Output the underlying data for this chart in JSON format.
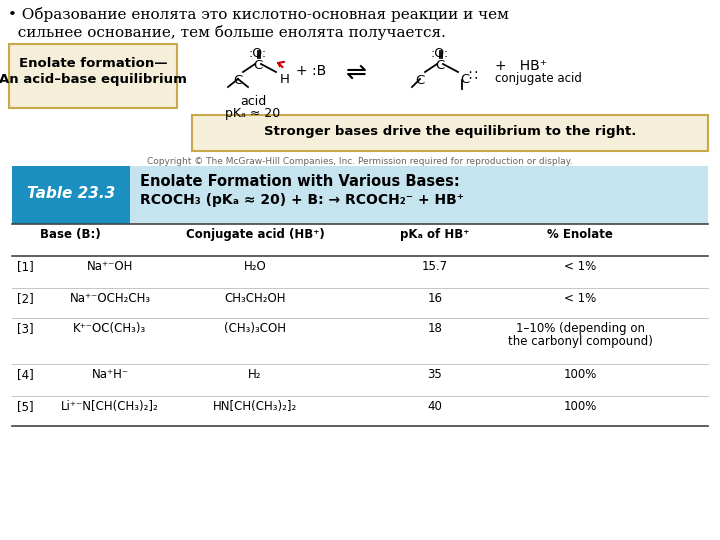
{
  "bullet_text_line1": "• Образование енолята это кислотно-основная реакции и чем",
  "bullet_text_line2": "  сильнее основание, тем больше енолята получается.",
  "box_label_line1": "Enolate formation—",
  "box_label_line2": "An acid–base equilibrium",
  "stronger_bases_text": "Stronger bases drive the equilibrium to the right.",
  "copyright_text": "Copyright © The McGraw-Hill Companies, Inc. Permission required for reproduction or display.",
  "table_number": "Table 23.3",
  "table_title_line1": "Enolate Formation with Various Bases:",
  "table_title_line2": "RCOCH₃ (pKₐ ≈ 20) + B: → RCOCH₂⁻ + HB⁺",
  "col_headers": [
    "Base (B:)",
    "Conjugate acid (HB⁺)",
    "pKₐ of HB⁺",
    "% Enolate"
  ],
  "rows": [
    {
      "num": "[1]",
      "base": "Na⁺⁻OH",
      "conj": "H₂O",
      "pka": "15.7",
      "enolate": "< 1%"
    },
    {
      "num": "[2]",
      "base": "Na⁺⁻OCH₂CH₃",
      "conj": "CH₃CH₂OH",
      "pka": "16",
      "enolate": "< 1%"
    },
    {
      "num": "[3]",
      "base": "K⁺⁻OC(CH₃)₃",
      "conj": "(CH₃)₃COH",
      "pka": "18",
      "enolate": "1–10% (depending on\nthe carbonyl compound)"
    },
    {
      "num": "[4]",
      "base": "Na⁺H⁻",
      "conj": "H₂",
      "pka": "35",
      "enolate": "100%"
    },
    {
      "num": "[5]",
      "base": "Li⁺⁻N[CH(CH₃)₂]₂",
      "conj": "HN[CH(CH₃)₂]₂",
      "pka": "40",
      "enolate": "100%"
    }
  ],
  "bg_color": "#ffffff",
  "table_header_bg": "#1a8fc0",
  "table_title_bg": "#c5e4f0",
  "box_bg": "#f5eed8",
  "box_border": "#c8a84b",
  "stronger_bg": "#f5eed8",
  "stronger_border": "#c8a84b",
  "line_color": "#888888"
}
